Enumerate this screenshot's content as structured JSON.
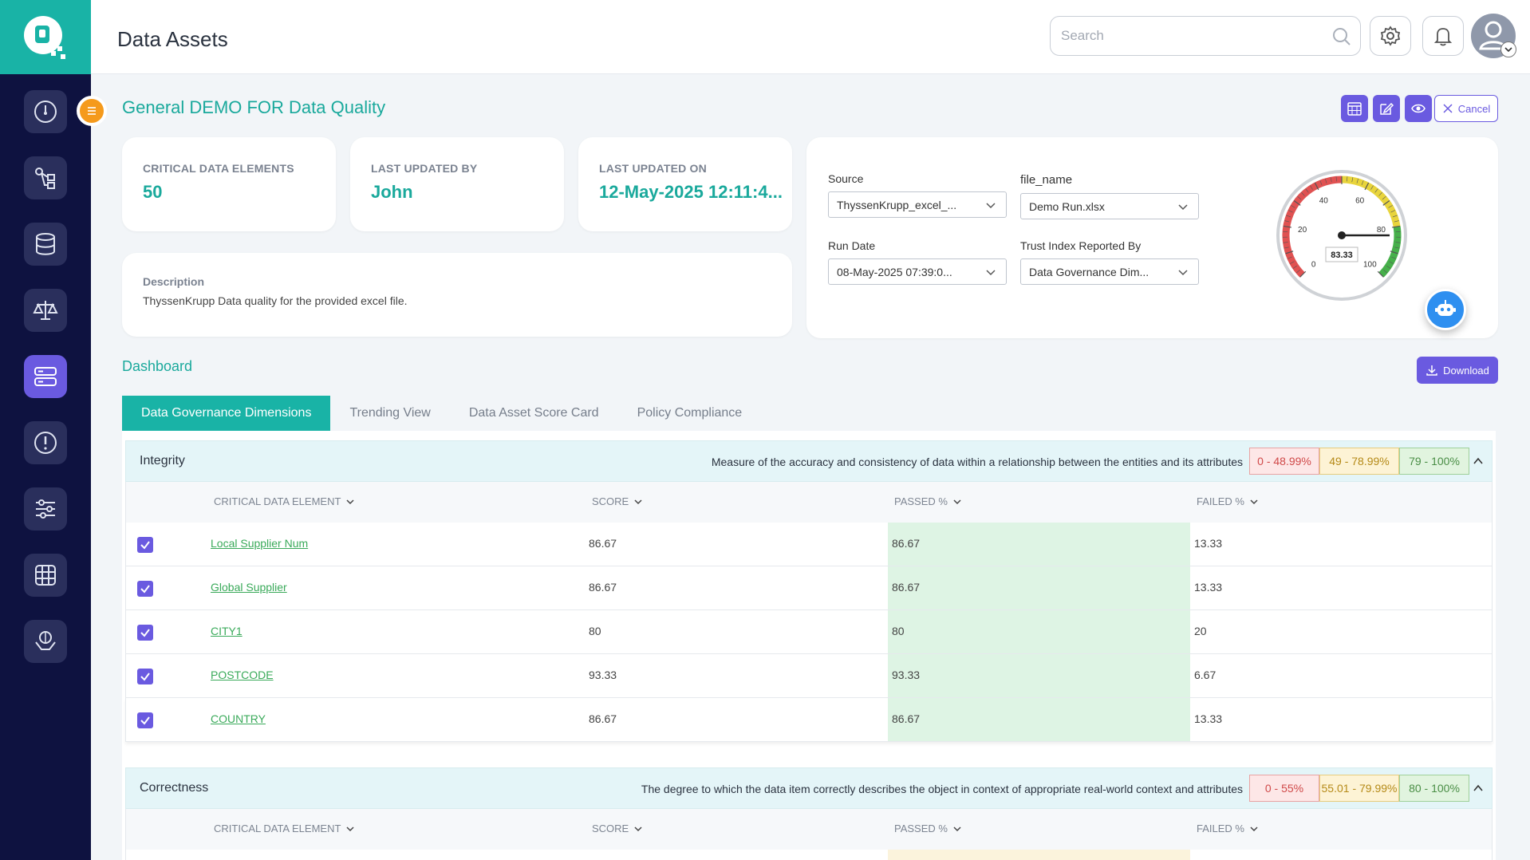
{
  "header": {
    "app_title": "Data Assets",
    "search_placeholder": "Search"
  },
  "page": {
    "title": "General DEMO FOR Data Quality",
    "cancel_label": "Cancel"
  },
  "stats": [
    {
      "label": "CRITICAL DATA ELEMENTS",
      "value": "50"
    },
    {
      "label": "LAST UPDATED BY",
      "value": "John"
    },
    {
      "label": "LAST UPDATED ON",
      "value": "12-May-2025 12:11:4..."
    }
  ],
  "description": {
    "label": "Description",
    "text": "ThyssenKrupp Data quality for the provided excel file."
  },
  "filters": {
    "source_label": "Source",
    "source_value": "ThyssenKrupp_excel_...",
    "file_label": "file_name",
    "file_value": "Demo Run.xlsx",
    "run_date_label": "Run Date",
    "run_date_value": "08-May-2025 07:39:0...",
    "trust_label": "Trust Index Reported By",
    "trust_value": "Data Governance Dim..."
  },
  "gauge": {
    "value": 83.33,
    "display": "83.33",
    "min": 0,
    "max": 100,
    "ticks": [
      "0",
      "20",
      "40",
      "60",
      "80",
      "100"
    ],
    "colors": {
      "red": "#e05252",
      "yellow": "#e8d43c",
      "green": "#46b04a"
    }
  },
  "dashboard": {
    "title": "Dashboard",
    "download_label": "Download",
    "tabs": [
      "Data Governance Dimensions",
      "Trending View",
      "Data Asset Score Card",
      "Policy Compliance"
    ],
    "active_tab": 0
  },
  "table_headers": {
    "cde": "CRITICAL DATA ELEMENT",
    "score": "SCORE",
    "passed": "PASSED %",
    "failed": "FAILED %"
  },
  "sections": [
    {
      "name": "Integrity",
      "description": "Measure of the accuracy and consistency of data within a relationship between the entities and its attributes",
      "ranges": [
        "0 - 48.99%",
        "49 - 78.99%",
        "79 - 100%"
      ],
      "rows": [
        {
          "cde": "Local Supplier Num",
          "score": "86.67",
          "passed": "86.67",
          "failed": "13.33"
        },
        {
          "cde": "Global Supplier",
          "score": "86.67",
          "passed": "86.67",
          "failed": "13.33"
        },
        {
          "cde": "CITY1",
          "score": "80",
          "passed": "80",
          "failed": "20"
        },
        {
          "cde": "POSTCODE",
          "score": "93.33",
          "passed": "93.33",
          "failed": "6.67"
        },
        {
          "cde": "COUNTRY",
          "score": "86.67",
          "passed": "86.67",
          "failed": "13.33"
        }
      ]
    },
    {
      "name": "Correctness",
      "description": "The degree to which the data item correctly describes the object in context of appropriate real-world context and attributes",
      "ranges": [
        "0 - 55%",
        "55.01 - 79.99%",
        "80 - 100%"
      ],
      "rows": []
    }
  ],
  "colors": {
    "accent": "#19b3a6",
    "primary": "#6a5ae0",
    "sidebar": "#0e1240"
  }
}
